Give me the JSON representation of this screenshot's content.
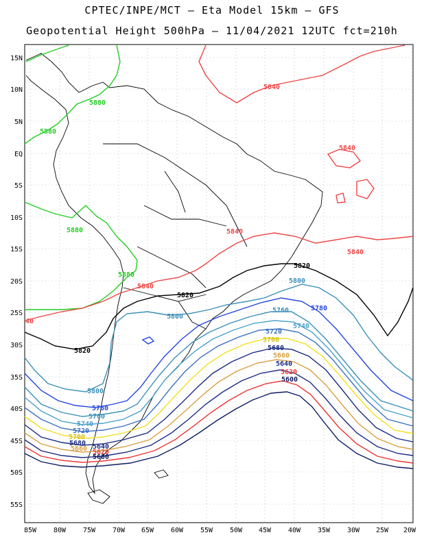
{
  "title_line1": "CPTEC/INPE/MCT –  Eta Model 15km – GFS",
  "title_line2": "Geopotential Height 500hPa – 11/04/2021 12UTC fct=210h",
  "lat_labels": [
    "15N",
    "10N",
    "5N",
    "EQ",
    "5S",
    "10S",
    "15S",
    "20S",
    "25S",
    "30S",
    "35S",
    "40S",
    "45S",
    "50S",
    "55S"
  ],
  "lon_labels": [
    "85W",
    "80W",
    "75W",
    "70W",
    "65W",
    "60W",
    "55W",
    "50W",
    "45W",
    "40W",
    "35W",
    "30W",
    "25W",
    "20W"
  ],
  "colors": {
    "c5880": "#22cc22",
    "c5840": "#ee4444",
    "c5820": "#000000",
    "c5800": "#3a8fb7",
    "c5780": "#2244dd",
    "c5760": "#3a8fb7",
    "c5740": "#4aa0c8",
    "c5720": "#3a70c0",
    "c5700": "#f0e020",
    "c5680": "#1a2a80",
    "c5660": "#d8a040",
    "c5640": "#1a2a80",
    "c5620": "#ee3333",
    "c5600": "#0a1a60",
    "coast": "#000000",
    "grid": "#999999"
  },
  "contour_labels": [
    {
      "id": "l5880a",
      "text": "5880"
    },
    {
      "id": "l5880b",
      "text": "5880"
    },
    {
      "id": "l5880c",
      "text": "5880"
    },
    {
      "id": "l5880d",
      "text": "5880"
    },
    {
      "id": "l5840a",
      "text": "5840"
    },
    {
      "id": "l5840b",
      "text": "5840"
    },
    {
      "id": "l5840c",
      "text": "5840"
    },
    {
      "id": "l5840d",
      "text": "5840"
    },
    {
      "id": "l5840e",
      "text": "5840"
    },
    {
      "id": "l5840f",
      "text": "40"
    },
    {
      "id": "l5820a",
      "text": "5820"
    },
    {
      "id": "l5820b",
      "text": "5820"
    },
    {
      "id": "l5820c",
      "text": "5820"
    },
    {
      "id": "l5800a",
      "text": "5800"
    },
    {
      "id": "l5800b",
      "text": "5800"
    },
    {
      "id": "l5800c",
      "text": "5800"
    },
    {
      "id": "l5780a",
      "text": "5780"
    },
    {
      "id": "l5780b",
      "text": "5780"
    },
    {
      "id": "l5760a",
      "text": "5760"
    },
    {
      "id": "l5760b",
      "text": "5760"
    },
    {
      "id": "l5740a",
      "text": "5740"
    },
    {
      "id": "l5740b",
      "text": "5740"
    },
    {
      "id": "l5720a",
      "text": "5720"
    },
    {
      "id": "l5720b",
      "text": "5720"
    },
    {
      "id": "l5700a",
      "text": "5700"
    },
    {
      "id": "l5700b",
      "text": "5700"
    },
    {
      "id": "l5680a",
      "text": "5680"
    },
    {
      "id": "l5680b",
      "text": "5680"
    },
    {
      "id": "l5660a",
      "text": "5660"
    },
    {
      "id": "l5660b",
      "text": "5660"
    },
    {
      "id": "l5640a",
      "text": "5640"
    },
    {
      "id": "l5640b",
      "text": "5640"
    },
    {
      "id": "l5620a",
      "text": "5620"
    },
    {
      "id": "l5620b",
      "text": "5620"
    },
    {
      "id": "l5600a",
      "text": "5600"
    },
    {
      "id": "l5600b",
      "text": "5600"
    }
  ]
}
